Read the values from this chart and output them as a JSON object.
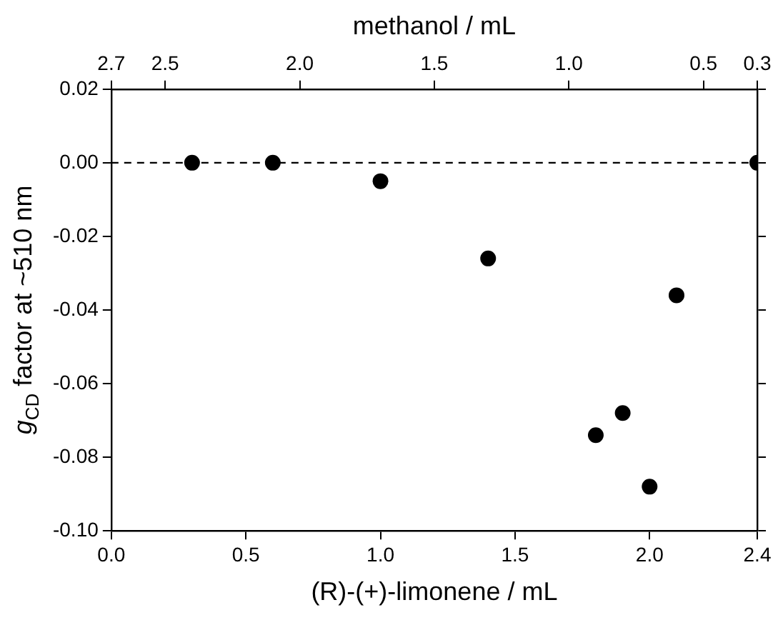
{
  "chart_data": {
    "type": "scatter",
    "xlabel": "(R)-(+)-limonene / mL",
    "ylabel": "g$_{CD}$ factor at ~510 nm",
    "x2label": "methanol / mL",
    "x": [
      0.3,
      0.6,
      1.0,
      1.4,
      1.8,
      1.9,
      2.0,
      2.1,
      2.4
    ],
    "series": [
      {
        "color": "#000000",
        "values": [
          0,
          0,
          -0.005,
          -0.026,
          -0.074,
          -0.068,
          -0.088,
          -0.036,
          0
        ]
      }
    ],
    "xlim": [
      0,
      2.4
    ],
    "xticks": [
      {
        "value": 0,
        "label": "0.0"
      },
      0.5,
      {
        "value": 1,
        "label": "1.0"
      },
      1.5,
      {
        "value": 2,
        "label": "2.0"
      },
      2.4
    ],
    "x2lim": [
      2.7,
      0.3
    ],
    "x2ticks": [
      2.7,
      2.5,
      {
        "value": 2,
        "label": "2.0"
      },
      1.5,
      {
        "value": 1,
        "label": "1.0"
      },
      0.5,
      0.3
    ],
    "ylim": [
      -0.1,
      0.02
    ],
    "yticks": [
      0.02,
      {
        "value": 0,
        "label": "0.00"
      },
      -0.02,
      -0.04,
      -0.06,
      -0.08,
      {
        "value": -0.1,
        "label": "-0.10"
      }
    ],
    "ref_lines": [
      {
        "axis": "y",
        "value": 0,
        "line_style": "dashed",
        "color": "#000000"
      }
    ],
    "marker": "circle",
    "grid": false,
    "legend": false
  }
}
